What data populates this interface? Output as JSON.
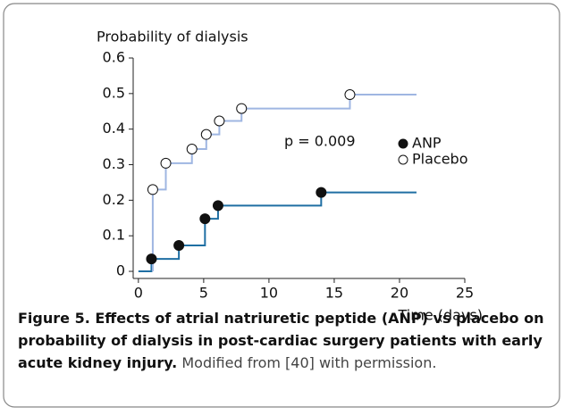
{
  "chart_data": {
    "type": "step",
    "y_label": "Probability of dialysis",
    "x_label": "Time (days)",
    "annotation": "p = 0.009",
    "xlim": [
      -0.4,
      25
    ],
    "xticks": [
      0,
      5,
      10,
      15,
      20,
      25
    ],
    "ylim": [
      -0.02,
      0.6
    ],
    "yticks": [
      0,
      0.1,
      0.2,
      0.3,
      0.4,
      0.5,
      0.6
    ],
    "legend": "top-right",
    "series": [
      {
        "name": "ANP",
        "color": "#1f6fa3",
        "marker_fill": "#111111",
        "x": [
          0,
          1.0,
          3.1,
          5.1,
          6.1,
          14.0,
          21.3
        ],
        "values": [
          0,
          0.035,
          0.073,
          0.148,
          0.185,
          0.222,
          0.222
        ],
        "markers": [
          false,
          true,
          true,
          true,
          true,
          true,
          false
        ]
      },
      {
        "name": "Placebo",
        "color": "#9fb6e2",
        "marker_fill": "#ffffff",
        "x": [
          1.1,
          1.1,
          2.1,
          4.1,
          5.2,
          6.2,
          7.9,
          16.2,
          21.3
        ],
        "values": [
          0,
          0.23,
          0.304,
          0.344,
          0.385,
          0.423,
          0.458,
          0.497,
          0.497
        ],
        "markers": [
          false,
          true,
          true,
          true,
          true,
          true,
          true,
          true,
          false
        ]
      }
    ]
  },
  "figure_caption": {
    "title": "Figure 5. Effects of atrial natriuretic peptide (ANP) vs placebo on probability of dialysis in post-cardiac surgery patients with early acute kidney injury.",
    "note": "Modified from [40] with permission."
  }
}
